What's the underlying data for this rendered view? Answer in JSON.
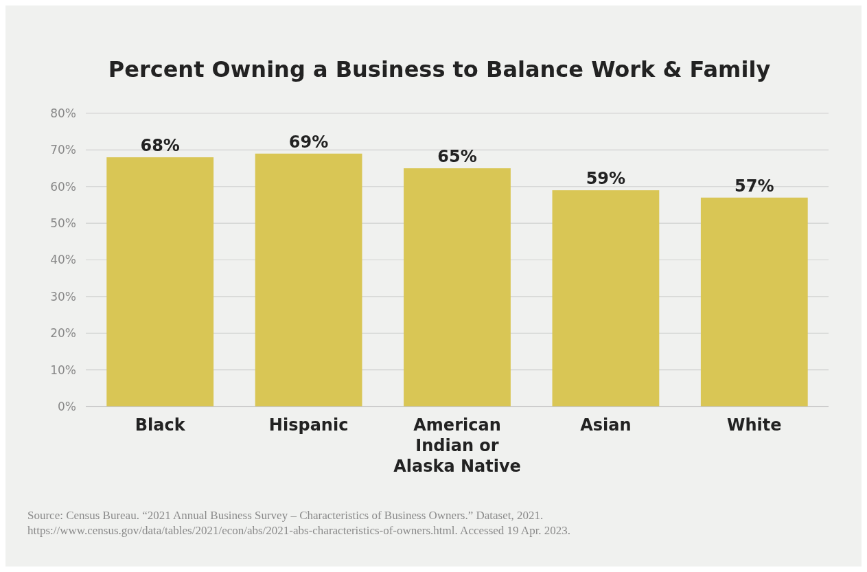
{
  "chart_data": {
    "type": "bar",
    "title": "Percent Owning a Business to Balance Work & Family",
    "categories": [
      "Black",
      "Hispanic",
      "American Indian or Alaska Native",
      "Asian",
      "White"
    ],
    "values": [
      68,
      69,
      65,
      59,
      57
    ],
    "value_labels": [
      "68%",
      "69%",
      "65%",
      "59%",
      "57%"
    ],
    "color": "#d9c655",
    "ylim": [
      0,
      80
    ],
    "yticks": [
      {
        "value": 0,
        "label": "0%"
      },
      {
        "value": 10,
        "label": "10%"
      },
      {
        "value": 20,
        "label": "20%"
      },
      {
        "value": 30,
        "label": "30%"
      },
      {
        "value": 40,
        "label": "40%"
      },
      {
        "value": 50,
        "label": "50%"
      },
      {
        "value": 60,
        "label": "60%"
      },
      {
        "value": 70,
        "label": "70%"
      },
      {
        "value": 80,
        "label": "80%"
      }
    ],
    "grid": "y",
    "annotations": [
      "Source: Census Bureau. “2021 Annual Business Survey – Characteristics of Business Owners.” Dataset, 2021. https://www.census.gov/data/tables/2021/econ/abs/2021-abs-characteristics-of-owners.html. Accessed 19 Apr. 2023."
    ]
  }
}
